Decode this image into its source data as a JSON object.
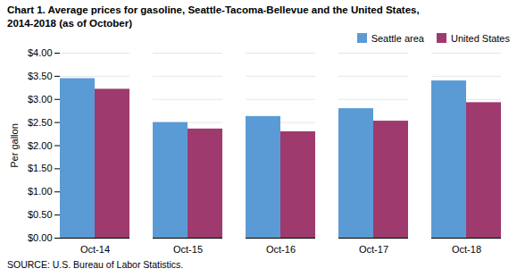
{
  "chart_data": {
    "type": "bar",
    "title": "Chart 1. Average prices for gasoline, Seattle-Tacoma-Bellevue and the United States,\n2014-2018  (as of October)",
    "ylabel": "Per gallon",
    "caption": "SOURCE: U.S. Bureau of Labor Statistics.",
    "categories": [
      "Oct-14",
      "Oct-15",
      "Oct-16",
      "Oct-17",
      "Oct-18"
    ],
    "series": [
      {
        "name": "Seattle area",
        "color": "#5B9BD5",
        "values": [
          3.45,
          2.5,
          2.63,
          2.8,
          3.4
        ]
      },
      {
        "name": "United States",
        "color": "#9E3A6E",
        "values": [
          3.22,
          2.36,
          2.3,
          2.53,
          2.93
        ]
      }
    ],
    "ylim": [
      0,
      4.0
    ],
    "yticks": [
      {
        "value": 0.0,
        "label": "$0.00"
      },
      {
        "value": 0.5,
        "label": "$0.50"
      },
      {
        "value": 1.0,
        "label": "$1.00"
      },
      {
        "value": 1.5,
        "label": "$1.50"
      },
      {
        "value": 2.0,
        "label": "$2.00"
      },
      {
        "value": 2.5,
        "label": "$2.50"
      },
      {
        "value": 3.0,
        "label": "$3.00"
      },
      {
        "value": 3.5,
        "label": "$3.50"
      },
      {
        "value": 4.0,
        "label": "$4.00"
      }
    ],
    "grid": true,
    "legend": "upper right"
  }
}
